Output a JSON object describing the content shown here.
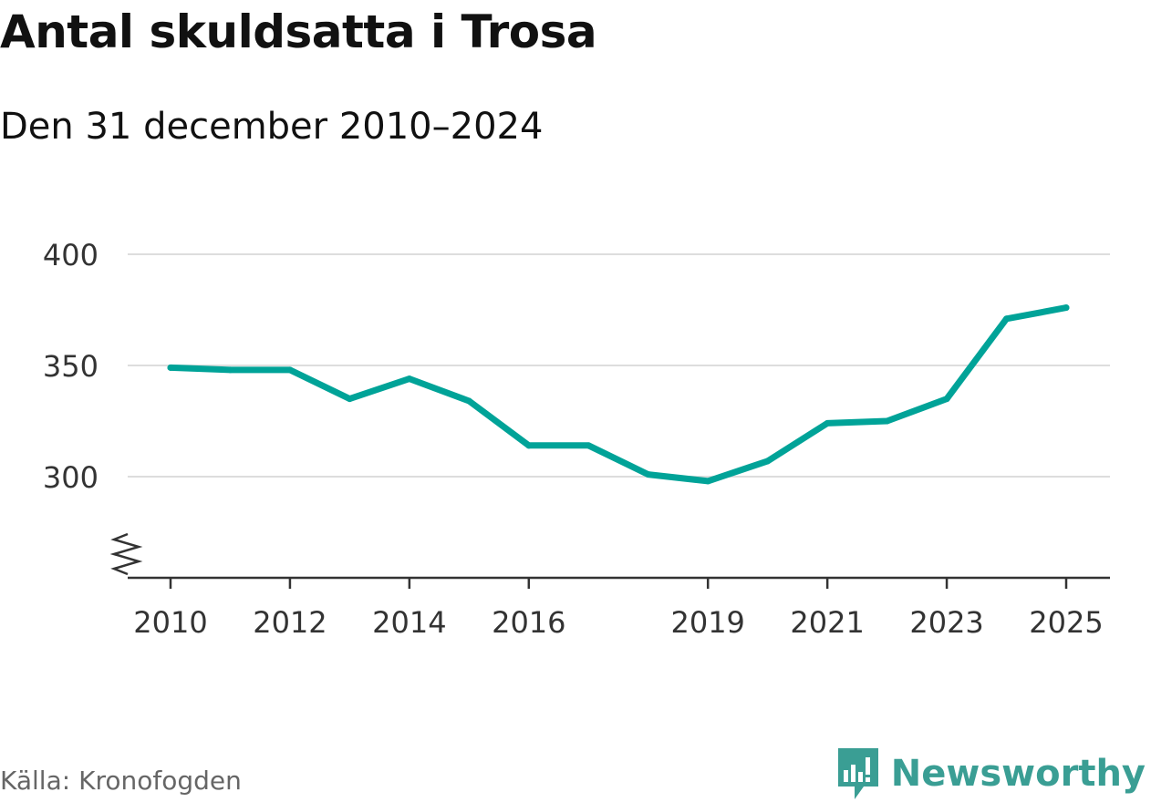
{
  "title": "Antal skuldsatta i Trosa",
  "subtitle": "Den 31 december 2010–2024",
  "source": "Källa: Kronofogden",
  "brand": {
    "name": "Newsworthy",
    "icon": "newsworthy-logo-icon",
    "color": "#3a9e94"
  },
  "colors": {
    "line": "#00a398",
    "grid": "#dddddd",
    "axis": "#333333"
  },
  "chart_data": {
    "type": "line",
    "title": "Antal skuldsatta i Trosa",
    "subtitle": "Den 31 december 2010–2024",
    "xlabel": "",
    "ylabel": "",
    "x": [
      2010,
      2011,
      2012,
      2013,
      2014,
      2015,
      2016,
      2017,
      2018,
      2019,
      2020,
      2021,
      2022,
      2023,
      2024,
      2025
    ],
    "series": [
      {
        "name": "Antal skuldsatta",
        "values": [
          349,
          348,
          348,
          335,
          344,
          334,
          314,
          314,
          301,
          298,
          307,
          324,
          325,
          335,
          371,
          376
        ]
      }
    ],
    "xticks": [
      "2010",
      "2012",
      "2014",
      "2016",
      "2019",
      "2021",
      "2023",
      "2025"
    ],
    "yticks": [
      "300",
      "350",
      "400"
    ],
    "ylim": [
      255,
      400
    ],
    "grid": true,
    "axis_break": true
  }
}
